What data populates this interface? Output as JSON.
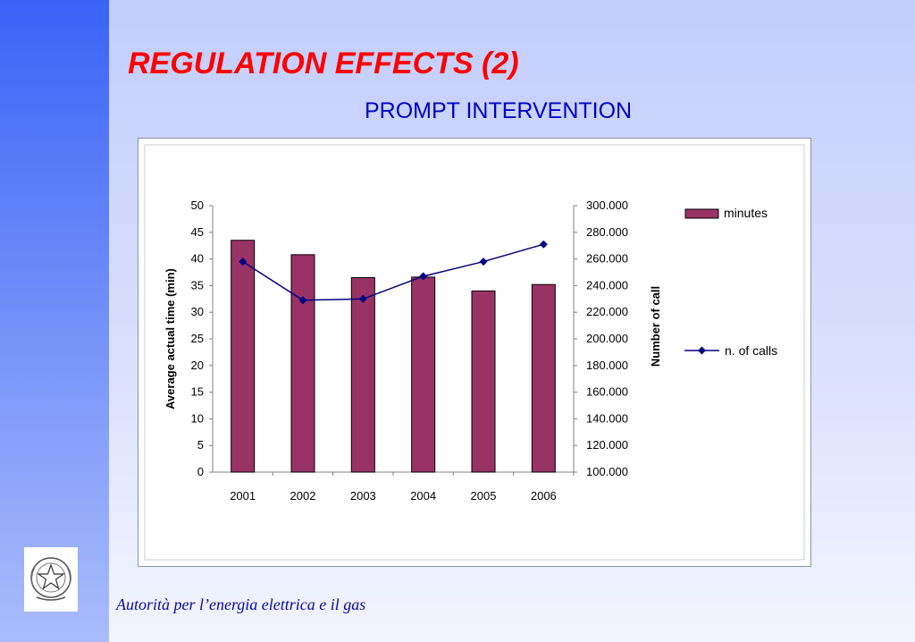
{
  "slide": {
    "title": "REGULATION EFFECTS (2)",
    "subtitle": "PROMPT INTERVENTION",
    "footer": "Autorità per l’energia elettrica e il gas"
  },
  "colors": {
    "title": "#ff0000",
    "subtitle": "#0000c8",
    "bar": "#993366",
    "line": "#000080",
    "side_bar": "#3a63f6"
  },
  "icons": {
    "emblem": "republic-emblem-icon"
  },
  "chart_data": {
    "type": "bar",
    "categories": [
      "2001",
      "2002",
      "2003",
      "2004",
      "2005",
      "2006"
    ],
    "series": [
      {
        "name": "minutes",
        "type": "bar",
        "axis": "left",
        "values": [
          43.5,
          40.8,
          36.5,
          36.6,
          34.0,
          35.2
        ]
      },
      {
        "name": "n. of calls",
        "type": "line",
        "axis": "right",
        "marker": "diamond",
        "values": [
          258000,
          229000,
          230000,
          247000,
          258000,
          271000
        ]
      }
    ],
    "ylabel": "Average actual time (min)",
    "y2label": "Number of call",
    "ylim": [
      0,
      50
    ],
    "y2lim": [
      100000,
      300000
    ],
    "yticks": [
      "0",
      "5",
      "10",
      "15",
      "20",
      "25",
      "30",
      "35",
      "40",
      "45",
      "50"
    ],
    "y2ticks": [
      "100.000",
      "120.000",
      "140.000",
      "160.000",
      "180.000",
      "200.000",
      "220.000",
      "240.000",
      "260.000",
      "280.000",
      "300.000"
    ],
    "grid": false,
    "legend_position": "right"
  }
}
